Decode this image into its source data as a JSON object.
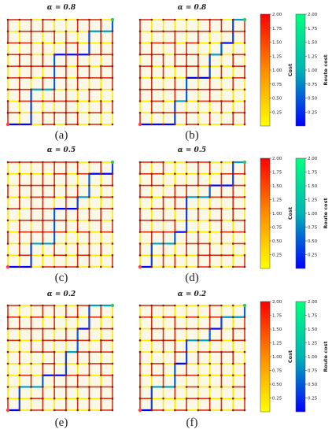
{
  "panels": [
    {
      "title": "α = 0.8",
      "caption": "(a)",
      "route": [
        [
          0,
          0
        ],
        [
          2,
          0
        ],
        [
          2,
          3
        ],
        [
          4,
          3
        ],
        [
          4,
          6
        ],
        [
          7,
          6
        ],
        [
          7,
          8
        ],
        [
          9,
          8
        ],
        [
          9,
          9
        ]
      ]
    },
    {
      "title": "α = 0.8",
      "caption": "(b)",
      "route": [
        [
          0,
          0
        ],
        [
          3,
          0
        ],
        [
          3,
          2
        ],
        [
          4,
          2
        ],
        [
          4,
          4
        ],
        [
          6,
          4
        ],
        [
          6,
          6
        ],
        [
          7,
          6
        ],
        [
          7,
          7
        ],
        [
          8,
          7
        ],
        [
          8,
          9
        ],
        [
          9,
          9
        ]
      ]
    },
    {
      "title": "α = 0.5",
      "caption": "(c)",
      "route": [
        [
          0,
          0
        ],
        [
          2,
          0
        ],
        [
          2,
          2
        ],
        [
          4,
          2
        ],
        [
          4,
          5
        ],
        [
          6,
          5
        ],
        [
          6,
          6
        ],
        [
          7,
          6
        ],
        [
          7,
          8
        ],
        [
          9,
          8
        ],
        [
          9,
          9
        ]
      ]
    },
    {
      "title": "α = 0.5",
      "caption": "(d)",
      "route": [
        [
          0,
          0
        ],
        [
          1,
          0
        ],
        [
          1,
          2
        ],
        [
          3,
          2
        ],
        [
          3,
          3
        ],
        [
          4,
          3
        ],
        [
          4,
          6
        ],
        [
          6,
          6
        ],
        [
          6,
          7
        ],
        [
          8,
          7
        ],
        [
          8,
          9
        ],
        [
          9,
          9
        ]
      ]
    },
    {
      "title": "α = 0.2",
      "caption": "(e)",
      "route": [
        [
          0,
          0
        ],
        [
          1,
          0
        ],
        [
          1,
          2
        ],
        [
          3,
          2
        ],
        [
          3,
          3
        ],
        [
          5,
          3
        ],
        [
          5,
          5
        ],
        [
          6,
          5
        ],
        [
          6,
          7
        ],
        [
          7,
          7
        ],
        [
          7,
          9
        ],
        [
          9,
          9
        ]
      ]
    },
    {
      "title": "α = 0.2",
      "caption": "(f)",
      "route": [
        [
          0,
          0
        ],
        [
          1,
          0
        ],
        [
          1,
          2
        ],
        [
          3,
          2
        ],
        [
          3,
          4
        ],
        [
          4,
          4
        ],
        [
          4,
          6
        ],
        [
          6,
          6
        ],
        [
          6,
          7
        ],
        [
          7,
          7
        ],
        [
          7,
          8
        ],
        [
          9,
          8
        ],
        [
          9,
          9
        ]
      ]
    }
  ],
  "grid": {
    "nodes_per_side": 10
  },
  "colorbars": {
    "cost": {
      "label": "Cost",
      "ticks": [
        "0.25",
        "0.50",
        "0.75",
        "1.00",
        "1.25",
        "1.50",
        "1.75",
        "2.00"
      ],
      "colors": [
        "#ffff00",
        "#ff8c00",
        "#ff0000"
      ]
    },
    "route_cost": {
      "label": "Route cost",
      "ticks": [
        "0.25",
        "0.50",
        "0.75",
        "1.00",
        "1.25",
        "1.50",
        "1.75",
        "2.00"
      ],
      "colors": [
        "#0000ff",
        "#00b4b4",
        "#00ff80"
      ]
    }
  },
  "colors": {
    "low_cost": "#ffea00",
    "high_cost": "#e03010",
    "node": "#8b1a1a",
    "start_node": "#ff4040",
    "goal_node": "#40c060"
  }
}
